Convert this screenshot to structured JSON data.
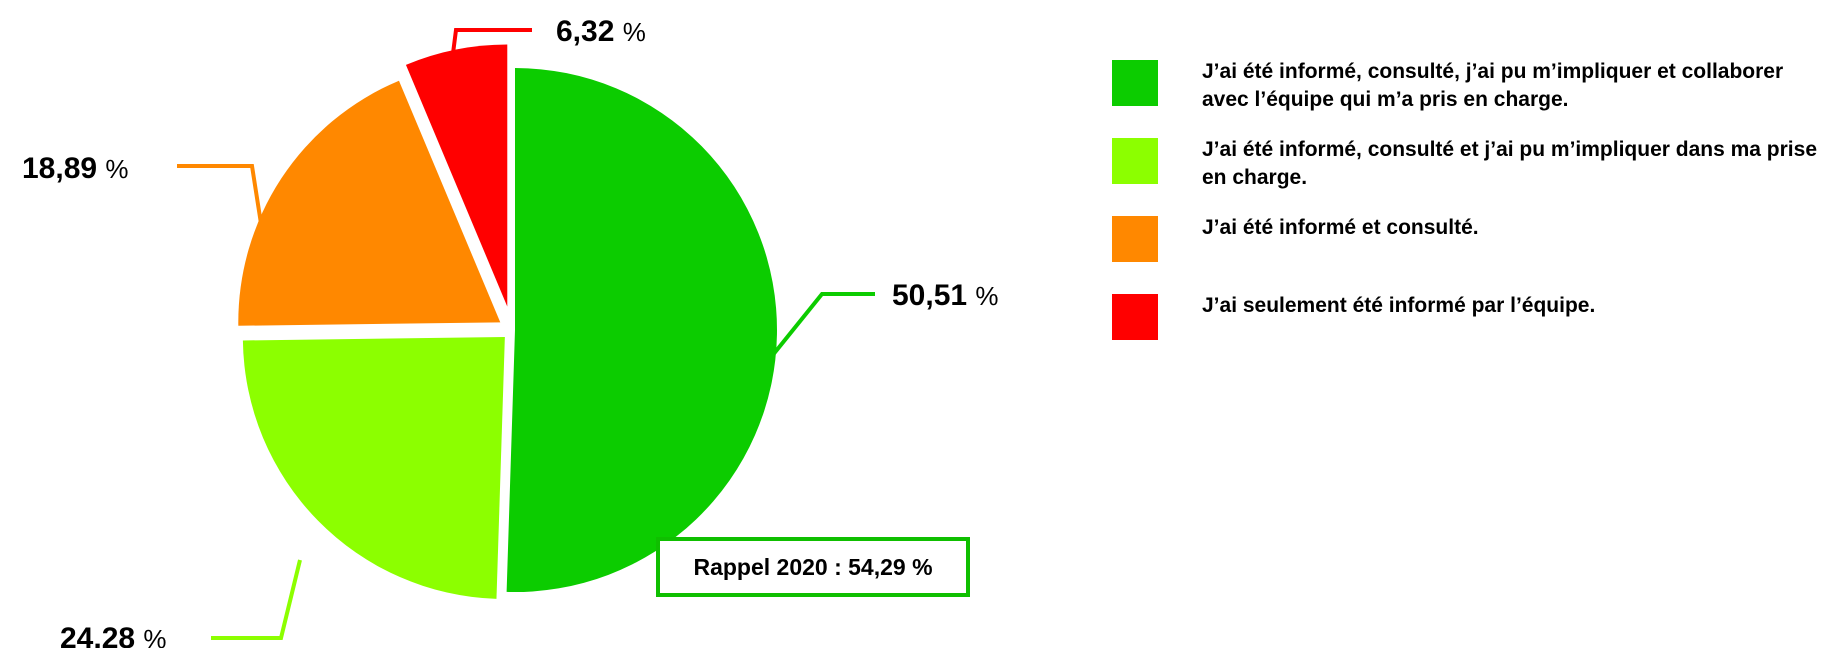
{
  "chart_data": {
    "type": "pie",
    "slices": [
      {
        "value": 50.51,
        "label": "50,51",
        "color": "#0ccc00"
      },
      {
        "value": 24.28,
        "label": "24,28",
        "color": "#8cff00"
      },
      {
        "value": 18.89,
        "label": "18,89",
        "color": "#ff8800"
      },
      {
        "value": 6.32,
        "label": "6,32",
        "color": "#ff0000"
      }
    ],
    "percent_sign": "%",
    "legend": [
      {
        "color": "#0ccc00",
        "text": "J’ai été informé, consulté, j’ai pu m’impliquer et collaborer avec l’équipe qui m’a pris en charge."
      },
      {
        "color": "#8cff00",
        "text": "J’ai été informé, consulté et j’ai pu m’impliquer dans ma prise en charge."
      },
      {
        "color": "#ff8800",
        "text": "J’ai été informé et consulté."
      },
      {
        "color": "#ff0000",
        "text": "J’ai seulement été informé par l’équipe."
      }
    ],
    "legend_position": "right",
    "annotation": "Rappel 2020 : 54,29 %"
  }
}
